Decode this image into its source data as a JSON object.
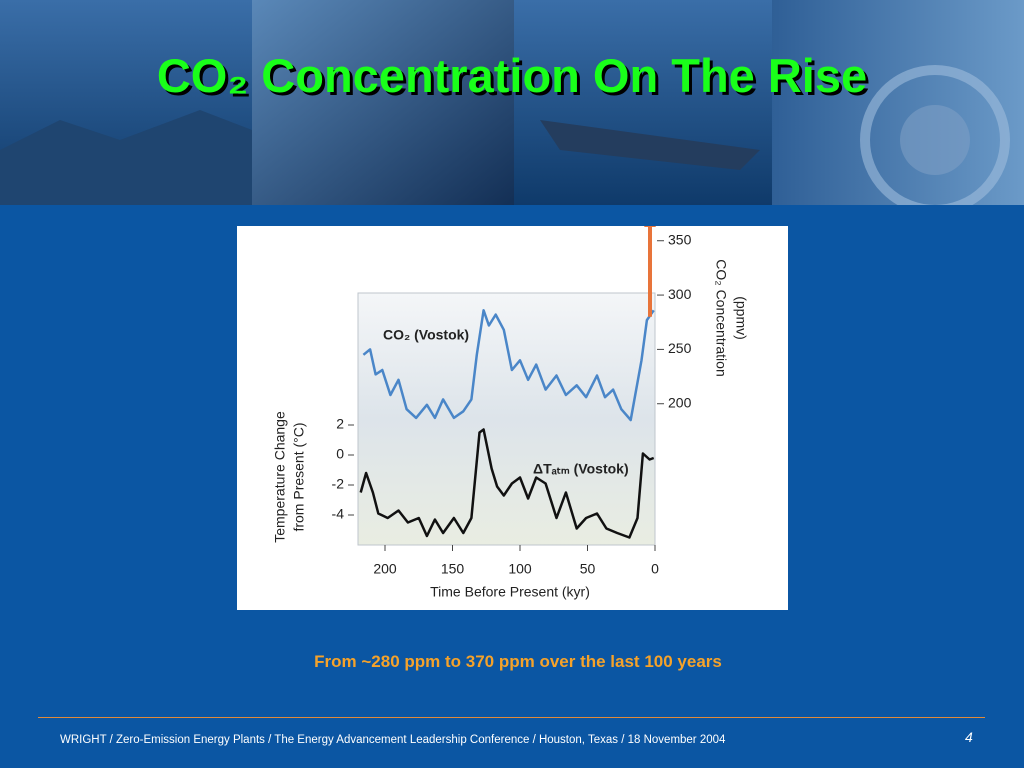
{
  "slide": {
    "title": "CO₂ Concentration On The Rise",
    "caption": "From ~280 ppm to 370 ppm over the last 100 years",
    "footer": "WRIGHT / Zero-Emission Energy Plants / The Energy Advancement Leadership Conference / Houston, Texas / 18 November 2004",
    "page": "4"
  },
  "chart_data": {
    "type": "line",
    "xlabel": "Time Before Present (kyr)",
    "ylabel": [
      "Temperature Change",
      "from Present (°C)"
    ],
    "y2label": [
      "CO₂ Concentration",
      "(ppmv)"
    ],
    "xlim": [
      220,
      0
    ],
    "xticks": [
      200,
      150,
      100,
      50,
      0
    ],
    "ylim": [
      -6,
      10.8
    ],
    "yticks": [
      2,
      0,
      -2,
      -4
    ],
    "y2lim": [
      70,
      370
    ],
    "y2ticks": [
      350,
      300,
      250,
      200
    ],
    "x": [],
    "series": [
      {
        "name": "CO₂ (Vostok)",
        "color": "#4a86c8",
        "axis": "y2",
        "x": [
          216,
          211,
          207,
          202,
          196,
          190,
          184,
          177,
          169,
          163,
          157,
          149,
          142,
          136,
          132,
          127,
          123,
          118,
          112,
          106,
          100,
          94,
          88,
          81,
          73,
          66,
          58,
          51,
          43,
          37,
          31,
          25,
          18,
          10,
          6,
          1
        ],
        "values": [
          245,
          250,
          227,
          231,
          208,
          222,
          195,
          187,
          199,
          187,
          204,
          187,
          193,
          204,
          245,
          286,
          272,
          282,
          268,
          231,
          240,
          222,
          236,
          213,
          226,
          208,
          217,
          206,
          226,
          206,
          213,
          195,
          185,
          240,
          277,
          286
        ]
      },
      {
        "name": "ΔTₐₜₘ (Vostok)",
        "color": "#111111",
        "axis": "y",
        "x": [
          218,
          214,
          209,
          205,
          198,
          190,
          183,
          175,
          169,
          163,
          157,
          149,
          142,
          136,
          130,
          127,
          121,
          117,
          112,
          106,
          100,
          94,
          88,
          81,
          73,
          66,
          58,
          51,
          43,
          36,
          28,
          19,
          13,
          9,
          4,
          1
        ],
        "values": [
          -2.5,
          -1.2,
          -2.5,
          -3.9,
          -4.2,
          -3.7,
          -4.5,
          -4.2,
          -5.4,
          -4.3,
          -5.2,
          -4.2,
          -5.2,
          -4.2,
          1.5,
          1.7,
          -0.9,
          -2.1,
          -2.7,
          -1.9,
          -1.5,
          -2.9,
          -1.5,
          -1.9,
          -4.2,
          -2.5,
          -4.9,
          -4.2,
          -3.9,
          -4.9,
          -5.2,
          -5.5,
          -4.2,
          0.1,
          -0.3,
          -0.2
        ]
      }
    ],
    "arrow": {
      "x": 0,
      "from": 280,
      "to": 370,
      "color": "#e8743a"
    }
  }
}
